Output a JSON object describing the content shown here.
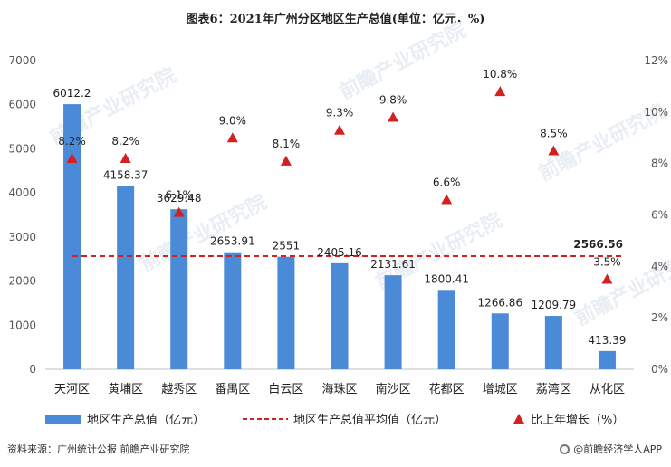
{
  "title": "图表6：2021年广州分区地区生产总值(单位：亿元，%)",
  "source": "资料来源：广州统计公报 前瞻产业研究院",
  "brand": "@前瞻经济学人APP",
  "watermark_text": "前瞻产业研究院",
  "chart_data": {
    "type": "bar",
    "categories": [
      "天河区",
      "黄埔区",
      "越秀区",
      "番禺区",
      "白云区",
      "海珠区",
      "南沙区",
      "花都区",
      "增城区",
      "荔湾区",
      "从化区"
    ],
    "series": [
      {
        "name": "地区生产总值（亿元）",
        "kind": "bar",
        "axis": "left",
        "color": "#4a8ad6",
        "values": [
          6012.2,
          4158.37,
          3629.48,
          2653.91,
          2551,
          2405.16,
          2131.61,
          1800.41,
          1266.86,
          1209.79,
          413.39
        ],
        "labels": [
          "6012.2",
          "4158.37",
          "3629.48",
          "2653.91",
          "2551",
          "2405.16",
          "2131.61",
          "1800.41",
          "1266.86",
          "1209.79",
          "413.39"
        ]
      },
      {
        "name": "地区生产总值平均值（亿元）",
        "kind": "dashed-line",
        "axis": "left",
        "color": "#d32020",
        "value": 2566.56,
        "label": "2566.56"
      },
      {
        "name": "比上年增长（%）",
        "kind": "marker-triangle",
        "axis": "right",
        "color": "#d32020",
        "values": [
          8.2,
          8.2,
          6.1,
          9.0,
          8.1,
          9.3,
          9.8,
          6.6,
          10.8,
          8.5,
          3.5
        ],
        "labels": [
          "8.2%",
          "8.2%",
          "6.1%",
          "9.0%",
          "8.1%",
          "9.3%",
          "9.8%",
          "6.6%",
          "10.8%",
          "8.5%",
          "3.5%"
        ]
      }
    ],
    "y_left": {
      "min": 0,
      "max": 7000,
      "ticks": [
        "0",
        "1000",
        "2000",
        "3000",
        "4000",
        "5000",
        "6000",
        "7000"
      ]
    },
    "y_right": {
      "min": 0,
      "max": 12,
      "ticks": [
        "0%",
        "2%",
        "4%",
        "6%",
        "8%",
        "10%",
        "12%"
      ]
    },
    "grid": false,
    "legend_position": "bottom"
  }
}
